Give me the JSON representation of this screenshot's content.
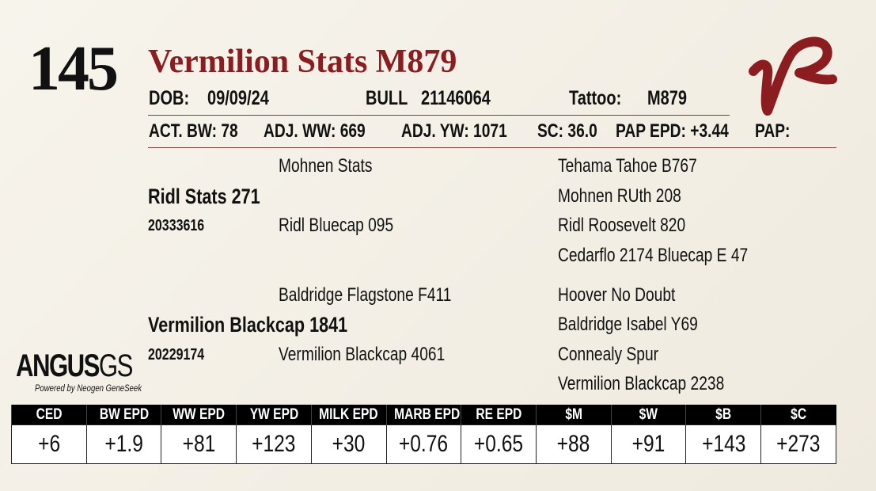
{
  "lot": "145",
  "name": "Vermilion Stats M879",
  "info": {
    "dob_label": "DOB:",
    "dob": "09/09/24",
    "sex": "BULL",
    "registration": "21146064",
    "tattoo_label": "Tattoo:",
    "tattoo": "M879"
  },
  "stats": [
    "ACT. BW: 78",
    "ADJ. WW: 669",
    "ADJ. YW: 1071",
    "SC: 36.0",
    "PAP EPD: +3.44",
    "PAP:"
  ],
  "pedigree": {
    "sire": {
      "name": "Ridl Stats 271",
      "registration": "20333616",
      "sire": "Mohnen Stats",
      "dam": "Ridl Bluecap 095",
      "grandparents": [
        "Tehama Tahoe B767",
        "Mohnen RUth 208",
        "Ridl Roosevelt 820",
        "Cedarflo 2174 Bluecap E 47"
      ]
    },
    "dam": {
      "name": "Vermilion Blackcap 1841",
      "registration": "20229174",
      "sire": "Baldridge Flagstone F411",
      "dam": "Vermilion Blackcap 4061",
      "grandparents": [
        "Hoover No Doubt",
        "Baldridge Isabel Y69",
        "Connealy Spur",
        "Vermilion Blackcap 2238"
      ]
    }
  },
  "logo": {
    "text": "ANGUS",
    "suffix": "GS",
    "tagline": "Powered by Neogen GeneSeek"
  },
  "epd": {
    "headers": [
      "CED",
      "BW EPD",
      "WW EPD",
      "YW EPD",
      "MILK EPD",
      "MARB EPD",
      "RE EPD",
      "$M",
      "$W",
      "$B",
      "$C"
    ],
    "values": [
      "+6",
      "+1.9",
      "+81",
      "+123",
      "+30",
      "+0.76",
      "+0.65",
      "+88",
      "+91",
      "+143",
      "+273"
    ]
  }
}
